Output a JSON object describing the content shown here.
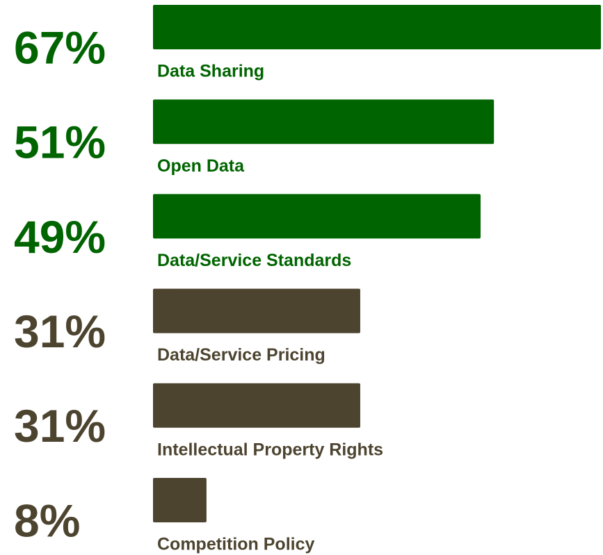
{
  "chart_data": {
    "type": "bar",
    "orientation": "horizontal",
    "categories": [
      "Data Sharing",
      "Open Data",
      "Data/Service Standards",
      "Data/Service Pricing",
      "Intellectual Property Rights",
      "Competition Policy"
    ],
    "values": [
      67,
      51,
      49,
      31,
      31,
      8
    ],
    "value_labels": [
      "67%",
      "51%",
      "49%",
      "31%",
      "31%",
      "8%"
    ],
    "colors": [
      "#006400",
      "#006400",
      "#006400",
      "#4d4430",
      "#4d4430",
      "#4d4430"
    ]
  }
}
